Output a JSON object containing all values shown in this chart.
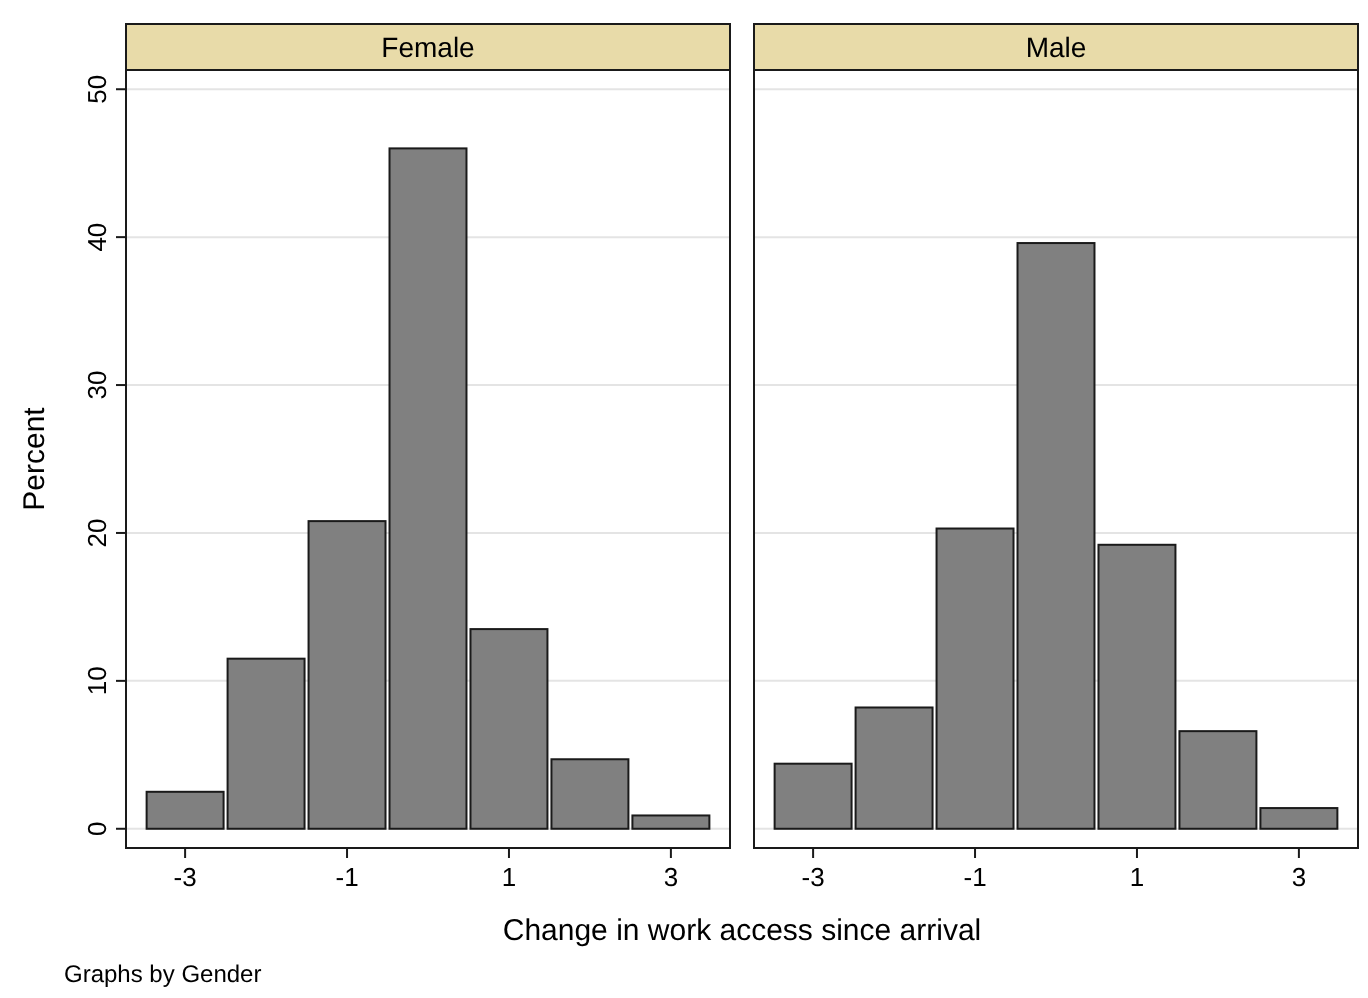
{
  "chart_data": [
    {
      "type": "histogram",
      "title": "Female",
      "ylabel": "Percent",
      "xlabel": "Change in work access since arrival",
      "annotations": [
        "Graphs by Gender"
      ],
      "bins": [
        -3.5,
        -2.5,
        -1.5,
        -0.5,
        0.5,
        1.5,
        2.5,
        3.5
      ],
      "values": [
        2.5,
        11.5,
        20.8,
        46.0,
        13.5,
        4.7,
        0.9
      ],
      "color": "#808080",
      "xlim": [
        -3.73,
        3.73
      ],
      "xticks": [
        -3,
        -1,
        1,
        3
      ],
      "ylim": [
        -1.3,
        51.3
      ],
      "yticks": [
        0,
        10,
        20,
        30,
        40,
        50
      ],
      "grid": "y"
    },
    {
      "type": "histogram",
      "title": "Male",
      "bins": [
        -3.5,
        -2.5,
        -1.5,
        -0.5,
        0.5,
        1.5,
        2.5,
        3.5
      ],
      "values": [
        4.4,
        8.2,
        20.3,
        39.6,
        19.2,
        6.6,
        1.4
      ],
      "color": "#808080",
      "xlim": [
        -3.73,
        3.73
      ],
      "xticks": [
        -3,
        -1,
        1,
        3
      ],
      "ylim": [
        -1.3,
        51.3
      ],
      "yticks": [
        0,
        10,
        20,
        30,
        40,
        50
      ],
      "grid": "y",
      "tick_labels": "x"
    }
  ]
}
